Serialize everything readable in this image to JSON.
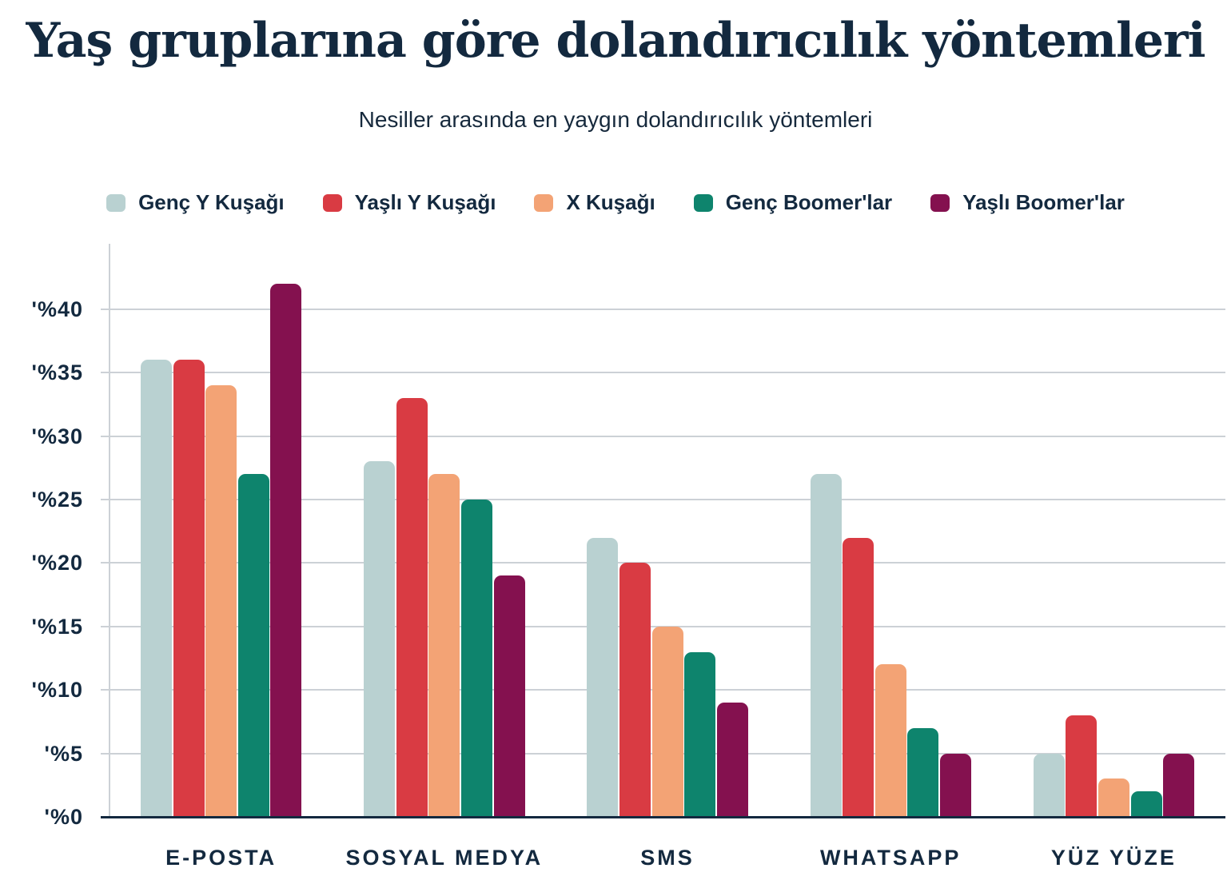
{
  "chart_data": {
    "type": "bar",
    "title": "Yaş gruplarına göre dolandırıcılık yöntemleri",
    "subtitle": "Nesiller arasında en yaygın dolandırıcılık yöntemleri",
    "categories": [
      "E-POSTA",
      "SOSYAL MEDYA",
      "SMS",
      "WHATSAPP",
      "YÜZ YÜZE"
    ],
    "series": [
      {
        "name": "Genç Y Kuşağı",
        "color": "#b9d1d1",
        "values": [
          36,
          28,
          22,
          27,
          5
        ]
      },
      {
        "name": "Yaşlı Y Kuşağı",
        "color": "#d93b43",
        "values": [
          36,
          33,
          20,
          22,
          8
        ]
      },
      {
        "name": "X Kuşağı",
        "color": "#f3a375",
        "values": [
          34,
          27,
          15,
          12,
          3
        ]
      },
      {
        "name": "Genç Boomer'lar",
        "color": "#0e846d",
        "values": [
          27,
          25,
          13,
          7,
          2
        ]
      },
      {
        "name": "Yaşlı Boomer'lar",
        "color": "#84114f",
        "values": [
          42,
          19,
          9,
          5,
          5
        ]
      }
    ],
    "y_axis": {
      "min": 0,
      "max": 40,
      "step": 5,
      "tick_labels": [
        "'%0",
        "'%5",
        "'%10",
        "'%15",
        "'%20",
        "'%25",
        "'%30",
        "'%35",
        "'%40"
      ]
    },
    "grid": "horizontal-only",
    "legend_position": "top",
    "colors": {
      "text": "#13293f",
      "gridline": "#ccd1d6",
      "axis": "#13293f",
      "background": "#ffffff"
    }
  }
}
